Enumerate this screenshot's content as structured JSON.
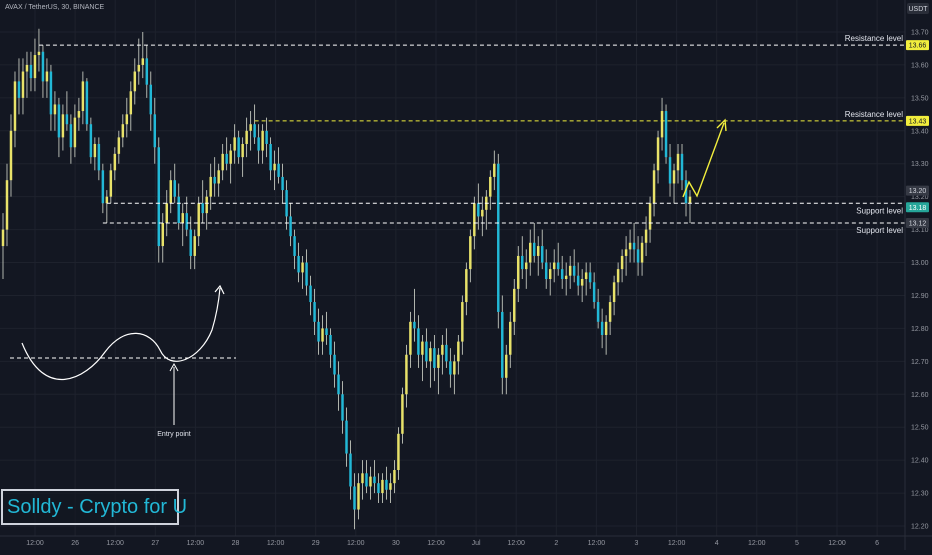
{
  "header": {
    "symbol_title": "AVAX / TetherUS, 30, BINANCE"
  },
  "watermark": {
    "text": "Solldy - Crypto for U"
  },
  "colors": {
    "background": "#131722",
    "grid": "#1e222d",
    "candle_up": "#e8e26a",
    "candle_down": "#22b8d6",
    "wick": "#d8dcd0",
    "level_white": "#ffffff",
    "level_yellow": "#f2ee3d",
    "axis_text": "#9598a1"
  },
  "chart_data": {
    "type": "candlestick",
    "axis_unit_label": "USDT",
    "ylim": [
      12.18,
      13.76
    ],
    "y_ticks": [
      "13.70",
      "13.60",
      "13.50",
      "13.40",
      "13.30",
      "13.20",
      "13.10",
      "13.00",
      "12.90",
      "12.80",
      "12.70",
      "12.60",
      "12.50",
      "12.40",
      "12.30",
      "12.20"
    ],
    "x_ticks": [
      "12:00",
      "26",
      "12:00",
      "27",
      "12:00",
      "28",
      "12:00",
      "29",
      "12:00",
      "30",
      "12:00",
      "Jul",
      "12:00",
      "2",
      "12:00",
      "3",
      "12:00",
      "4",
      "12:00",
      "5",
      "12:00",
      "6"
    ],
    "price_labels": [
      {
        "text": "13.66",
        "value": 13.66,
        "style": "yellow"
      },
      {
        "text": "13.43",
        "value": 13.43,
        "style": "yellow"
      },
      {
        "text": "13.20",
        "value": 13.2,
        "style": "dark"
      },
      {
        "text": "13.18",
        "value": 13.18,
        "style": "green"
      },
      {
        "text": "13.12",
        "value": 13.12,
        "style": "dark"
      }
    ],
    "levels": [
      {
        "label": "Resistance level",
        "value": 13.66,
        "color": "white",
        "start_index": 9
      },
      {
        "label": "Resistance level",
        "value": 13.43,
        "color": "yellow",
        "start_index": 63
      },
      {
        "label": "Support level",
        "value": 13.18,
        "color": "white",
        "start_index": 26
      },
      {
        "label": "Support level",
        "value": 13.12,
        "color": "white",
        "start_index": 25
      }
    ],
    "inset_level": {
      "value": 12.71
    },
    "annotations": [
      {
        "text": "Entry point",
        "value": 12.71
      }
    ],
    "ohlc": [
      [
        13.05,
        13.15,
        12.95,
        13.1
      ],
      [
        13.1,
        13.3,
        13.05,
        13.25
      ],
      [
        13.25,
        13.45,
        13.2,
        13.4
      ],
      [
        13.4,
        13.58,
        13.35,
        13.55
      ],
      [
        13.55,
        13.62,
        13.45,
        13.5
      ],
      [
        13.5,
        13.62,
        13.45,
        13.58
      ],
      [
        13.58,
        13.64,
        13.5,
        13.6
      ],
      [
        13.6,
        13.64,
        13.52,
        13.56
      ],
      [
        13.56,
        13.68,
        13.52,
        13.63
      ],
      [
        13.63,
        13.71,
        13.58,
        13.64
      ],
      [
        13.64,
        13.66,
        13.5,
        13.55
      ],
      [
        13.55,
        13.62,
        13.5,
        13.58
      ],
      [
        13.58,
        13.6,
        13.4,
        13.45
      ],
      [
        13.45,
        13.52,
        13.4,
        13.48
      ],
      [
        13.48,
        13.5,
        13.32,
        13.38
      ],
      [
        13.38,
        13.48,
        13.34,
        13.45
      ],
      [
        13.45,
        13.52,
        13.4,
        13.42
      ],
      [
        13.42,
        13.45,
        13.3,
        13.35
      ],
      [
        13.35,
        13.48,
        13.32,
        13.44
      ],
      [
        13.44,
        13.5,
        13.4,
        13.46
      ],
      [
        13.46,
        13.58,
        13.42,
        13.55
      ],
      [
        13.55,
        13.56,
        13.4,
        13.42
      ],
      [
        13.42,
        13.44,
        13.3,
        13.32
      ],
      [
        13.32,
        13.38,
        13.28,
        13.36
      ],
      [
        13.36,
        13.38,
        13.25,
        13.28
      ],
      [
        13.28,
        13.3,
        13.15,
        13.18
      ],
      [
        13.18,
        13.22,
        13.12,
        13.2
      ],
      [
        13.2,
        13.3,
        13.18,
        13.28
      ],
      [
        13.28,
        13.35,
        13.25,
        13.33
      ],
      [
        13.33,
        13.4,
        13.3,
        13.38
      ],
      [
        13.38,
        13.45,
        13.35,
        13.42
      ],
      [
        13.42,
        13.5,
        13.38,
        13.45
      ],
      [
        13.45,
        13.55,
        13.4,
        13.52
      ],
      [
        13.52,
        13.62,
        13.48,
        13.58
      ],
      [
        13.58,
        13.68,
        13.54,
        13.6
      ],
      [
        13.6,
        13.7,
        13.56,
        13.62
      ],
      [
        13.62,
        13.66,
        13.5,
        13.54
      ],
      [
        13.54,
        13.58,
        13.4,
        13.45
      ],
      [
        13.45,
        13.5,
        13.3,
        13.35
      ],
      [
        13.35,
        13.38,
        13.0,
        13.05
      ],
      [
        13.05,
        13.15,
        13.0,
        13.12
      ],
      [
        13.12,
        13.22,
        13.08,
        13.18
      ],
      [
        13.18,
        13.28,
        13.15,
        13.25
      ],
      [
        13.25,
        13.3,
        13.18,
        13.2
      ],
      [
        13.2,
        13.24,
        13.1,
        13.12
      ],
      [
        13.12,
        13.18,
        13.05,
        13.15
      ],
      [
        13.15,
        13.2,
        13.08,
        13.1
      ],
      [
        13.1,
        13.14,
        12.98,
        13.02
      ],
      [
        13.02,
        13.1,
        12.98,
        13.08
      ],
      [
        13.08,
        13.2,
        13.05,
        13.18
      ],
      [
        13.18,
        13.25,
        13.12,
        13.15
      ],
      [
        13.15,
        13.22,
        13.1,
        13.2
      ],
      [
        13.2,
        13.3,
        13.16,
        13.26
      ],
      [
        13.26,
        13.32,
        13.2,
        13.24
      ],
      [
        13.24,
        13.3,
        13.2,
        13.28
      ],
      [
        13.28,
        13.36,
        13.25,
        13.33
      ],
      [
        13.33,
        13.38,
        13.28,
        13.3
      ],
      [
        13.3,
        13.36,
        13.24,
        13.34
      ],
      [
        13.34,
        13.42,
        13.3,
        13.38
      ],
      [
        13.38,
        13.4,
        13.3,
        13.32
      ],
      [
        13.32,
        13.38,
        13.26,
        13.36
      ],
      [
        13.36,
        13.44,
        13.32,
        13.4
      ],
      [
        13.4,
        13.46,
        13.34,
        13.42
      ],
      [
        13.42,
        13.48,
        13.36,
        13.38
      ],
      [
        13.38,
        13.42,
        13.3,
        13.34
      ],
      [
        13.34,
        13.42,
        13.3,
        13.4
      ],
      [
        13.4,
        13.44,
        13.32,
        13.36
      ],
      [
        13.36,
        13.38,
        13.25,
        13.28
      ],
      [
        13.28,
        13.34,
        13.22,
        13.3
      ],
      [
        13.3,
        13.35,
        13.24,
        13.26
      ],
      [
        13.26,
        13.3,
        13.18,
        13.22
      ],
      [
        13.22,
        13.25,
        13.1,
        13.14
      ],
      [
        13.14,
        13.18,
        13.05,
        13.08
      ],
      [
        13.08,
        13.1,
        12.98,
        13.02
      ],
      [
        13.02,
        13.06,
        12.94,
        12.97
      ],
      [
        12.97,
        13.02,
        12.92,
        13.0
      ],
      [
        13.0,
        13.04,
        12.9,
        12.93
      ],
      [
        12.93,
        12.96,
        12.84,
        12.88
      ],
      [
        12.88,
        12.92,
        12.78,
        12.82
      ],
      [
        12.82,
        12.86,
        12.72,
        12.76
      ],
      [
        12.76,
        12.84,
        12.72,
        12.8
      ],
      [
        12.8,
        12.85,
        12.75,
        12.78
      ],
      [
        12.78,
        12.8,
        12.68,
        12.72
      ],
      [
        12.72,
        12.76,
        12.62,
        12.66
      ],
      [
        12.66,
        12.7,
        12.55,
        12.6
      ],
      [
        12.6,
        12.64,
        12.48,
        12.52
      ],
      [
        12.52,
        12.56,
        12.38,
        12.42
      ],
      [
        12.42,
        12.46,
        12.28,
        12.32
      ],
      [
        12.32,
        12.36,
        12.19,
        12.25
      ],
      [
        12.25,
        12.36,
        12.22,
        12.33
      ],
      [
        12.33,
        12.4,
        12.28,
        12.36
      ],
      [
        12.36,
        12.4,
        12.3,
        12.32
      ],
      [
        12.32,
        12.38,
        12.28,
        12.35
      ],
      [
        12.35,
        12.4,
        12.3,
        12.33
      ],
      [
        12.33,
        12.36,
        12.27,
        12.3
      ],
      [
        12.3,
        12.36,
        12.27,
        12.34
      ],
      [
        12.34,
        12.38,
        12.28,
        12.31
      ],
      [
        12.31,
        12.36,
        12.27,
        12.33
      ],
      [
        12.33,
        12.4,
        12.3,
        12.37
      ],
      [
        12.37,
        12.5,
        12.34,
        12.48
      ],
      [
        12.48,
        12.62,
        12.45,
        12.6
      ],
      [
        12.6,
        12.75,
        12.56,
        12.72
      ],
      [
        12.72,
        12.85,
        12.68,
        12.82
      ],
      [
        12.82,
        12.92,
        12.76,
        12.8
      ],
      [
        12.8,
        12.84,
        12.68,
        12.72
      ],
      [
        12.72,
        12.78,
        12.64,
        12.76
      ],
      [
        12.76,
        12.8,
        12.68,
        12.7
      ],
      [
        12.7,
        12.76,
        12.62,
        12.74
      ],
      [
        12.74,
        12.78,
        12.64,
        12.68
      ],
      [
        12.68,
        12.74,
        12.6,
        12.72
      ],
      [
        12.72,
        12.78,
        12.66,
        12.75
      ],
      [
        12.75,
        12.8,
        12.68,
        12.7
      ],
      [
        12.7,
        12.74,
        12.62,
        12.66
      ],
      [
        12.66,
        12.72,
        12.6,
        12.7
      ],
      [
        12.7,
        12.78,
        12.66,
        12.76
      ],
      [
        12.76,
        12.9,
        12.72,
        12.88
      ],
      [
        12.88,
        13.0,
        12.84,
        12.98
      ],
      [
        12.98,
        13.1,
        12.94,
        13.08
      ],
      [
        13.08,
        13.2,
        13.04,
        13.18
      ],
      [
        13.18,
        13.24,
        13.1,
        13.14
      ],
      [
        13.14,
        13.2,
        13.08,
        13.16
      ],
      [
        13.16,
        13.22,
        13.1,
        13.2
      ],
      [
        13.2,
        13.28,
        13.16,
        13.26
      ],
      [
        13.26,
        13.34,
        13.22,
        13.3
      ],
      [
        13.3,
        13.33,
        12.8,
        12.85
      ],
      [
        12.85,
        12.9,
        12.6,
        12.65
      ],
      [
        12.65,
        12.75,
        12.6,
        12.72
      ],
      [
        12.72,
        12.85,
        12.68,
        12.82
      ],
      [
        12.82,
        12.95,
        12.78,
        12.92
      ],
      [
        12.92,
        13.05,
        12.88,
        13.02
      ],
      [
        13.02,
        13.08,
        12.95,
        12.98
      ],
      [
        12.98,
        13.04,
        12.92,
        13.0
      ],
      [
        13.0,
        13.1,
        12.96,
        13.06
      ],
      [
        13.06,
        13.12,
        13.0,
        13.02
      ],
      [
        13.02,
        13.08,
        12.96,
        13.05
      ],
      [
        13.05,
        13.1,
        12.98,
        13.0
      ],
      [
        13.0,
        13.04,
        12.92,
        12.95
      ],
      [
        12.95,
        13.0,
        12.9,
        12.98
      ],
      [
        12.98,
        13.04,
        12.94,
        13.0
      ],
      [
        13.0,
        13.06,
        12.96,
        12.98
      ],
      [
        12.98,
        13.02,
        12.92,
        12.95
      ],
      [
        12.95,
        13.0,
        12.9,
        12.96
      ],
      [
        12.96,
        13.02,
        12.92,
        12.99
      ],
      [
        12.99,
        13.04,
        12.94,
        12.96
      ],
      [
        12.96,
        13.0,
        12.9,
        12.93
      ],
      [
        12.93,
        12.98,
        12.88,
        12.95
      ],
      [
        12.95,
        13.0,
        12.9,
        12.97
      ],
      [
        12.97,
        13.0,
        12.92,
        12.94
      ],
      [
        12.94,
        12.97,
        12.86,
        12.88
      ],
      [
        12.88,
        12.92,
        12.8,
        12.82
      ],
      [
        12.82,
        12.86,
        12.74,
        12.78
      ],
      [
        12.78,
        12.84,
        12.72,
        12.82
      ],
      [
        12.82,
        12.9,
        12.78,
        12.88
      ],
      [
        12.88,
        12.96,
        12.84,
        12.94
      ],
      [
        12.94,
        13.0,
        12.9,
        12.98
      ],
      [
        12.98,
        13.04,
        12.94,
        13.02
      ],
      [
        13.02,
        13.08,
        12.96,
        13.04
      ],
      [
        13.04,
        13.1,
        13.0,
        13.06
      ],
      [
        13.06,
        13.12,
        13.0,
        13.04
      ],
      [
        13.04,
        13.08,
        12.96,
        13.0
      ],
      [
        13.0,
        13.08,
        12.96,
        13.06
      ],
      [
        13.06,
        13.14,
        13.02,
        13.1
      ],
      [
        13.1,
        13.2,
        13.06,
        13.18
      ],
      [
        13.18,
        13.3,
        13.14,
        13.28
      ],
      [
        13.28,
        13.4,
        13.24,
        13.38
      ],
      [
        13.38,
        13.5,
        13.34,
        13.46
      ],
      [
        13.46,
        13.48,
        13.3,
        13.32
      ],
      [
        13.32,
        13.36,
        13.2,
        13.24
      ],
      [
        13.24,
        13.3,
        13.18,
        13.28
      ],
      [
        13.28,
        13.36,
        13.24,
        13.33
      ],
      [
        13.33,
        13.36,
        13.22,
        13.25
      ],
      [
        13.25,
        13.28,
        13.14,
        13.18
      ],
      [
        13.18,
        13.22,
        13.12,
        13.2
      ]
    ]
  }
}
